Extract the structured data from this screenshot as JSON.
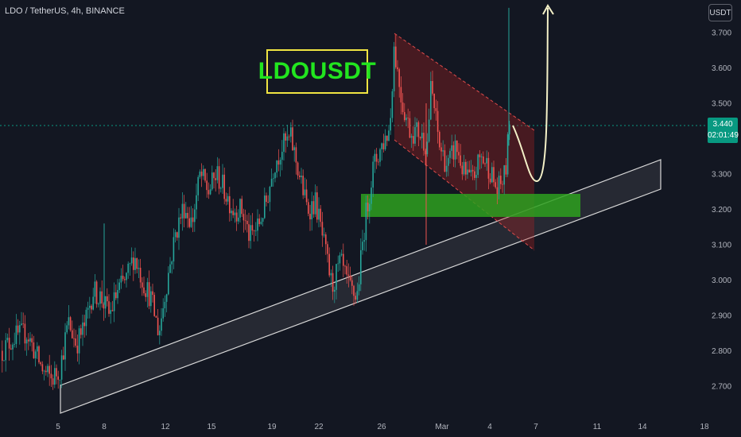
{
  "header": {
    "title": "LDO / TetherUS, 4h, BINANCE"
  },
  "currency_button": "USDT",
  "symbol_label": "LDOUSDT",
  "last_price": {
    "value": "3.440",
    "countdown": "02:01:49"
  },
  "colors": {
    "background": "#131722",
    "up_candle": "#26a69a",
    "down_candle": "#ef5350",
    "channel": "#b22222",
    "support_zone": "#2e8b1e",
    "label_border": "#f0e442",
    "label_text": "#22e51f",
    "price_tag": "#089981"
  },
  "chart_data": {
    "type": "candlestick",
    "title": "LDO / TetherUS, 4h, BINANCE",
    "x_tick_labels": [
      "5",
      "8",
      "12",
      "15",
      "19",
      "22",
      "26",
      "Mar",
      "4",
      "7",
      "11",
      "14",
      "18"
    ],
    "y_tick_labels": [
      "3.700",
      "3.600",
      "3.500",
      "3.300",
      "3.200",
      "3.100",
      "3.000",
      "2.900",
      "2.800",
      "2.700"
    ],
    "ylim": [
      2.625,
      3.775
    ],
    "last_price": 3.44,
    "support_zone": {
      "low": 3.18,
      "high": 3.245
    },
    "grid": false,
    "candle_anchors": [
      [
        0,
        2.8
      ],
      [
        3,
        2.84
      ],
      [
        6,
        2.85
      ],
      [
        10,
        2.74
      ],
      [
        12,
        2.72
      ],
      [
        14,
        2.75
      ],
      [
        16,
        2.88
      ],
      [
        18,
        2.82
      ],
      [
        20,
        2.87
      ],
      [
        22,
        2.97
      ],
      [
        24,
        2.95
      ],
      [
        26,
        2.9
      ],
      [
        28,
        2.97
      ],
      [
        30,
        3.0
      ],
      [
        32,
        3.07
      ],
      [
        34,
        3.0
      ],
      [
        36,
        2.95
      ],
      [
        38,
        2.85
      ],
      [
        40,
        3.0
      ],
      [
        42,
        3.13
      ],
      [
        44,
        3.21
      ],
      [
        46,
        3.16
      ],
      [
        48,
        3.3
      ],
      [
        50,
        3.25
      ],
      [
        52,
        3.3
      ],
      [
        54,
        3.25
      ],
      [
        56,
        3.2
      ],
      [
        58,
        3.2
      ],
      [
        60,
        3.12
      ],
      [
        62,
        3.15
      ],
      [
        64,
        3.22
      ],
      [
        66,
        3.33
      ],
      [
        68,
        3.38
      ],
      [
        70,
        3.4
      ],
      [
        72,
        3.3
      ],
      [
        74,
        3.2
      ],
      [
        76,
        3.22
      ],
      [
        78,
        3.1
      ],
      [
        80,
        2.98
      ],
      [
        82,
        3.05
      ],
      [
        84,
        2.98
      ],
      [
        86,
        2.95
      ],
      [
        88,
        3.17
      ],
      [
        90,
        3.32
      ],
      [
        92,
        3.38
      ],
      [
        94,
        3.43
      ],
      [
        95,
        3.66
      ],
      [
        97,
        3.5
      ],
      [
        99,
        3.42
      ],
      [
        101,
        3.42
      ],
      [
        103,
        3.38
      ],
      [
        104,
        3.55
      ],
      [
        106,
        3.38
      ],
      [
        108,
        3.32
      ],
      [
        110,
        3.38
      ],
      [
        112,
        3.3
      ],
      [
        114,
        3.28
      ],
      [
        116,
        3.35
      ],
      [
        118,
        3.32
      ],
      [
        120,
        3.25
      ],
      [
        122,
        3.3
      ],
      [
        123,
        3.44
      ]
    ]
  }
}
